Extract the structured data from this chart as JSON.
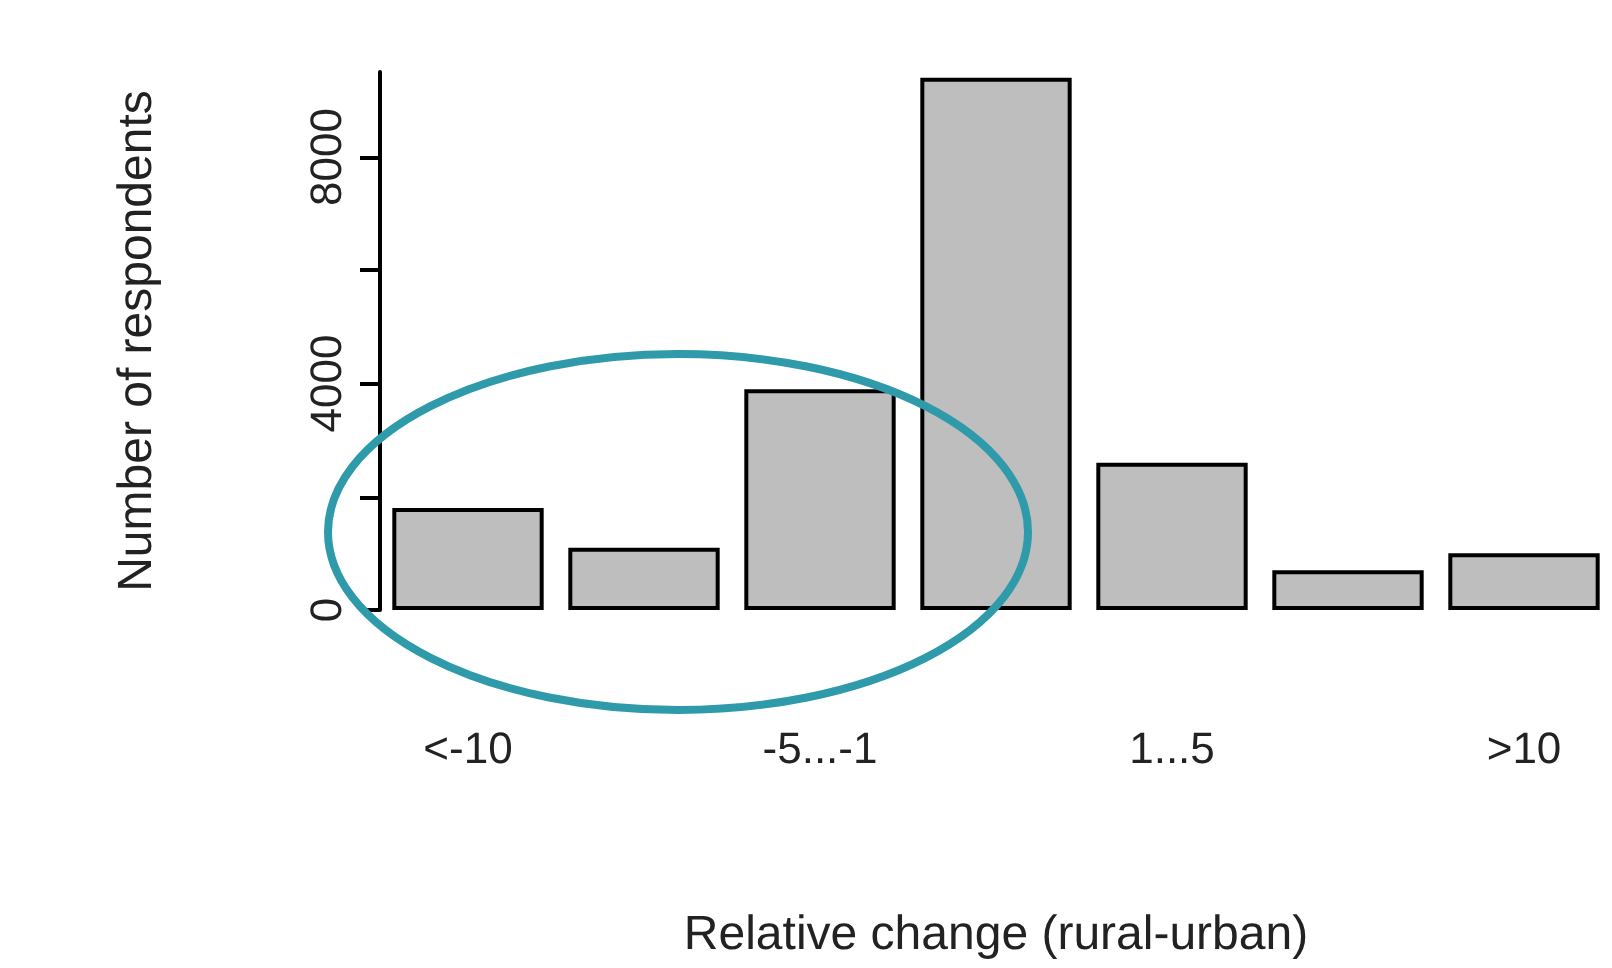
{
  "chart_data": {
    "type": "bar",
    "xlabel": "Relative change (rural-urban)",
    "ylabel": "Number of respondents",
    "categories": [
      "<-10",
      null,
      "-5...-1",
      null,
      "1...5",
      null,
      ">10"
    ],
    "values": [
      1800,
      1100,
      3900,
      9400,
      2600,
      700,
      1000
    ],
    "color": "#bebebe",
    "ylim": [
      0,
      9500
    ],
    "yticks": [
      0,
      {
        "value": 2000,
        "label": null
      },
      4000,
      {
        "value": 6000,
        "label": null
      },
      8000
    ],
    "grid": false
  }
}
